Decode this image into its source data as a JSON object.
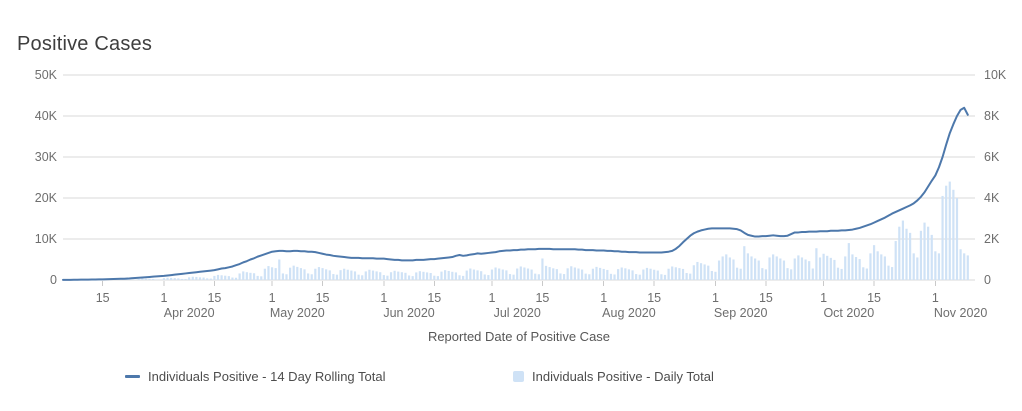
{
  "chart_data": {
    "type": "line+bar",
    "title": "Positive Cases",
    "xlabel": "Reported Date of Positive Case",
    "start_date": "2020-03-04",
    "x_domain_days": 253,
    "grid": true,
    "legend_position": "bottom",
    "colors": {
      "grid": "#dadada",
      "axis_text": "#6e6e6e",
      "tick_mark": "#c9c9c9",
      "title_text": "#3e3e3e",
      "legend_text": "#4d4d4d"
    },
    "left_axis": {
      "side": "left",
      "max": 50000,
      "tick_values": [
        0,
        10000,
        20000,
        30000,
        40000,
        50000
      ],
      "tick_labels": [
        "0",
        "10K",
        "20K",
        "30K",
        "40K",
        "50K"
      ]
    },
    "right_axis": {
      "side": "right",
      "max": 10000,
      "tick_values": [
        0,
        2000,
        4000,
        6000,
        8000,
        10000
      ],
      "tick_labels": [
        "0",
        "2K",
        "4K",
        "6K",
        "8K",
        "10K"
      ]
    },
    "x_ticks": [
      {
        "day": 11,
        "label": "15"
      },
      {
        "day": 28,
        "label": "1"
      },
      {
        "day": 42,
        "label": "15"
      },
      {
        "day": 58,
        "label": "1"
      },
      {
        "day": 72,
        "label": "15"
      },
      {
        "day": 89,
        "label": "1"
      },
      {
        "day": 103,
        "label": "15"
      },
      {
        "day": 119,
        "label": "1"
      },
      {
        "day": 133,
        "label": "15"
      },
      {
        "day": 150,
        "label": "1"
      },
      {
        "day": 164,
        "label": "15"
      },
      {
        "day": 181,
        "label": "1"
      },
      {
        "day": 195,
        "label": "15"
      },
      {
        "day": 211,
        "label": "1"
      },
      {
        "day": 225,
        "label": "15"
      },
      {
        "day": 242,
        "label": "1"
      }
    ],
    "month_labels": [
      {
        "day": 35,
        "label": "Apr 2020"
      },
      {
        "day": 65,
        "label": "May 2020"
      },
      {
        "day": 96,
        "label": "Jun 2020"
      },
      {
        "day": 126,
        "label": "Jul 2020"
      },
      {
        "day": 157,
        "label": "Aug 2020"
      },
      {
        "day": 188,
        "label": "Sep 2020"
      },
      {
        "day": 218,
        "label": "Oct 2020"
      },
      {
        "day": 249,
        "label": "Nov 2020"
      }
    ],
    "series": [
      {
        "name": "Individuals Positive - 14 Day Rolling Total",
        "type": "line",
        "axis": "left",
        "color": "#4d78ab",
        "values": [
          20,
          30,
          40,
          50,
          70,
          80,
          90,
          100,
          110,
          130,
          140,
          150,
          180,
          210,
          240,
          270,
          290,
          320,
          350,
          420,
          480,
          550,
          610,
          680,
          740,
          810,
          870,
          940,
          1000,
          1100,
          1200,
          1300,
          1400,
          1500,
          1600,
          1700,
          1800,
          1900,
          2000,
          2100,
          2200,
          2300,
          2400,
          2600,
          2800,
          2900,
          3100,
          3300,
          3600,
          3900,
          4300,
          4600,
          5000,
          5300,
          5700,
          6000,
          6300,
          6600,
          6900,
          7000,
          7100,
          7100,
          7000,
          7000,
          7100,
          7100,
          7000,
          7000,
          6900,
          6900,
          6800,
          6600,
          6400,
          6200,
          6100,
          5900,
          5800,
          5700,
          5600,
          5500,
          5400,
          5400,
          5400,
          5300,
          5300,
          5300,
          5300,
          5200,
          5200,
          5200,
          5100,
          5000,
          4900,
          4900,
          4800,
          4800,
          4800,
          4800,
          4900,
          4900,
          4900,
          5000,
          5100,
          5100,
          5200,
          5300,
          5400,
          5500,
          5600,
          5900,
          6100,
          5900,
          6000,
          6200,
          6300,
          6500,
          6400,
          6500,
          6600,
          6700,
          6800,
          7000,
          7100,
          7200,
          7200,
          7300,
          7300,
          7400,
          7400,
          7500,
          7500,
          7500,
          7600,
          7600,
          7600,
          7600,
          7500,
          7500,
          7500,
          7500,
          7500,
          7500,
          7500,
          7400,
          7400,
          7300,
          7300,
          7300,
          7200,
          7200,
          7200,
          7100,
          7100,
          7000,
          7000,
          6900,
          6900,
          6800,
          6800,
          6800,
          6700,
          6700,
          6700,
          6700,
          6700,
          6700,
          6700,
          6800,
          6900,
          7100,
          7600,
          8300,
          9200,
          10000,
          10800,
          11400,
          11800,
          12100,
          12300,
          12500,
          12600,
          12600,
          12600,
          12600,
          12600,
          12600,
          12500,
          12400,
          12100,
          11500,
          11000,
          10800,
          10600,
          10600,
          10700,
          10700,
          10800,
          10900,
          10800,
          10700,
          10700,
          10800,
          11200,
          11600,
          11600,
          11700,
          11700,
          11800,
          11800,
          11800,
          11900,
          11900,
          11900,
          12000,
          12000,
          12000,
          12100,
          12100,
          12200,
          12300,
          12500,
          12700,
          13000,
          13300,
          13600,
          14000,
          14400,
          14800,
          15200,
          15700,
          16200,
          16600,
          17000,
          17400,
          17800,
          18200,
          18700,
          19400,
          20300,
          21400,
          22800,
          24200,
          25500,
          27500,
          30000,
          33000,
          35800,
          38000,
          40000,
          41500,
          42000,
          40300
        ]
      },
      {
        "name": "Individuals Positive - Daily Total",
        "type": "bar",
        "axis": "right",
        "color": "#cfe2f6",
        "values": [
          10,
          20,
          20,
          20,
          10,
          10,
          10,
          20,
          30,
          30,
          20,
          20,
          10,
          10,
          30,
          40,
          40,
          30,
          30,
          20,
          20,
          50,
          70,
          60,
          60,
          50,
          30,
          30,
          90,
          110,
          100,
          90,
          80,
          50,
          50,
          130,
          160,
          150,
          130,
          120,
          80,
          70,
          200,
          250,
          230,
          210,
          190,
          120,
          110,
          320,
          420,
          380,
          350,
          330,
          200,
          180,
          550,
          680,
          620,
          580,
          1000,
          320,
          280,
          600,
          700,
          640,
          580,
          520,
          320,
          280,
          550,
          630,
          580,
          520,
          470,
          290,
          260,
          480,
          550,
          500,
          460,
          420,
          260,
          230,
          420,
          500,
          460,
          420,
          380,
          240,
          210,
          380,
          450,
          410,
          380,
          350,
          220,
          190,
          370,
          430,
          400,
          370,
          340,
          210,
          190,
          410,
          480,
          440,
          400,
          370,
          230,
          200,
          460,
          560,
          510,
          470,
          430,
          270,
          240,
          510,
          610,
          560,
          510,
          470,
          290,
          260,
          560,
          660,
          610,
          560,
          510,
          310,
          280,
          1050,
          690,
          630,
          570,
          530,
          320,
          290,
          570,
          670,
          610,
          560,
          510,
          310,
          280,
          550,
          640,
          590,
          540,
          490,
          300,
          270,
          530,
          610,
          570,
          520,
          470,
          290,
          260,
          510,
          590,
          550,
          500,
          460,
          280,
          250,
          550,
          660,
          620,
          580,
          540,
          340,
          310,
          720,
          880,
          820,
          760,
          700,
          440,
          400,
          950,
          1150,
          1250,
          1100,
          1000,
          600,
          550,
          1650,
          1300,
          1150,
          1050,
          950,
          580,
          520,
          1100,
          1250,
          1150,
          1050,
          950,
          580,
          520,
          1050,
          1200,
          1100,
          1000,
          920,
          560,
          1550,
          1100,
          1280,
          1180,
          1080,
          980,
          600,
          540,
          1150,
          1800,
          1250,
          1120,
          1020,
          620,
          560,
          1300,
          1700,
          1400,
          1250,
          1150,
          700,
          630,
          1900,
          2600,
          2900,
          2500,
          2300,
          1300,
          1100,
          2400,
          2800,
          2600,
          2200,
          1400,
          1300,
          4100,
          4600,
          4800,
          4400,
          4000,
          1500,
          1300,
          1200
        ]
      }
    ]
  }
}
